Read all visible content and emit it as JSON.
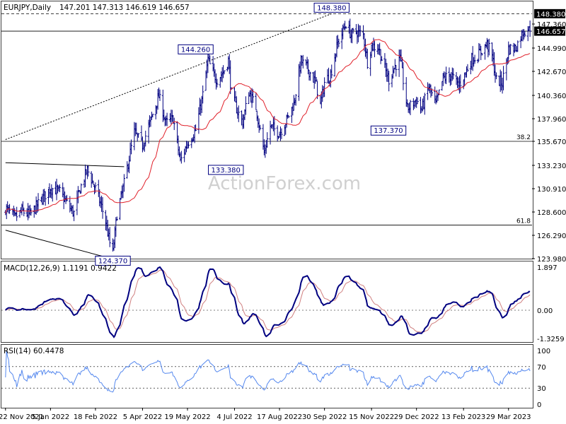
{
  "chart_data": [
    {
      "type": "ohlc",
      "panel": "price",
      "title": "EURJPY,Daily",
      "ohlc_readout": [
        "147.201",
        "147.313",
        "146.619",
        "146.657"
      ],
      "ylim": [
        123.98,
        149.5
      ],
      "y_ticks": [
        123.98,
        126.29,
        128.6,
        130.91,
        133.23,
        135.67,
        137.96,
        140.36,
        142.67,
        144.99,
        147.36
      ],
      "y_tick_labels": [
        "123.980",
        "126.290",
        "128.600",
        "130.910",
        "133.230",
        "135.670",
        "137.960",
        "140.360",
        "142.670",
        "144.990",
        "147.360"
      ],
      "x_tick_labels": [
        "22 Nov 2021",
        "5 Jan 2022",
        "18 Feb 2022",
        "5 Apr 2022",
        "19 May 2022",
        "4 Jul 2022",
        "17 Aug 2022",
        "30 Sep 2022",
        "15 Nov 2022",
        "29 Dec 2022",
        "13 Feb 2023",
        "29 Mar 2023"
      ],
      "close_anchors": [
        [
          "22 Nov 2021",
          129.0
        ],
        [
          "1 Dec 2021",
          128.0
        ],
        [
          "8 Dec 2021",
          128.7
        ],
        [
          "16 Dec 2021",
          128.3
        ],
        [
          "27 Dec 2021",
          129.8
        ],
        [
          "5 Jan 2022",
          131.0
        ],
        [
          "14 Jan 2022",
          130.6
        ],
        [
          "24 Jan 2022",
          129.0
        ],
        [
          "28 Jan 2022",
          128.5
        ],
        [
          "3 Feb 2022",
          130.9
        ],
        [
          "10 Feb 2022",
          132.8
        ],
        [
          "18 Feb 2022",
          130.9
        ],
        [
          "24 Feb 2022",
          129.1
        ],
        [
          "28 Feb 2022",
          127.6
        ],
        [
          "4 Mar 2022",
          125.5
        ],
        [
          "7 Mar 2022",
          124.6
        ],
        [
          "11 Mar 2022",
          128.4
        ],
        [
          "17 Mar 2022",
          130.9
        ],
        [
          "22 Mar 2022",
          133.5
        ],
        [
          "28 Mar 2022",
          136.6
        ],
        [
          "5 Apr 2022",
          135.3
        ],
        [
          "13 Apr 2022",
          137.8
        ],
        [
          "21 Apr 2022",
          140.3
        ],
        [
          "28 Apr 2022",
          137.5
        ],
        [
          "5 May 2022",
          138.0
        ],
        [
          "12 May 2022",
          133.6
        ],
        [
          "19 May 2022",
          135.5
        ],
        [
          "27 May 2022",
          136.8
        ],
        [
          "3 Jun 2022",
          140.4
        ],
        [
          "8 Jun 2022",
          143.8
        ],
        [
          "13 Jun 2022",
          142.5
        ],
        [
          "17 Jun 2022",
          141.9
        ],
        [
          "23 Jun 2022",
          142.6
        ],
        [
          "28 Jun 2022",
          143.8
        ],
        [
          "1 Jul 2022",
          140.5
        ],
        [
          "7 Jul 2022",
          138.7
        ],
        [
          "12 Jul 2022",
          137.6
        ],
        [
          "18 Jul 2022",
          140.7
        ],
        [
          "25 Jul 2022",
          139.1
        ],
        [
          "2 Aug 2022",
          134.5
        ],
        [
          "8 Aug 2022",
          137.2
        ],
        [
          "17 Aug 2022",
          136.5
        ],
        [
          "23 Aug 2022",
          137.6
        ],
        [
          "31 Aug 2022",
          139.5
        ],
        [
          "7 Sep 2022",
          143.7
        ],
        [
          "14 Sep 2022",
          142.9
        ],
        [
          "22 Sep 2022",
          141.4
        ],
        [
          "26 Sep 2022",
          139.3
        ],
        [
          "30 Sep 2022",
          141.6
        ],
        [
          "6 Oct 2022",
          142.4
        ],
        [
          "13 Oct 2022",
          145.5
        ],
        [
          "21 Oct 2022",
          147.4
        ],
        [
          "26 Oct 2022",
          146.3
        ],
        [
          "31 Oct 2022",
          146.6
        ],
        [
          "7 Nov 2022",
          146.3
        ],
        [
          "11 Nov 2022",
          143.6
        ],
        [
          "15 Nov 2022",
          145.2
        ],
        [
          "22 Nov 2022",
          145.0
        ],
        [
          "28 Nov 2022",
          142.9
        ],
        [
          "2 Dec 2022",
          141.9
        ],
        [
          "8 Dec 2022",
          143.2
        ],
        [
          "13 Dec 2022",
          143.9
        ],
        [
          "20 Dec 2022",
          139.0
        ],
        [
          "29 Dec 2022",
          139.9
        ],
        [
          "3 Jan 2023",
          138.9
        ],
        [
          "10 Jan 2023",
          141.2
        ],
        [
          "17 Jan 2023",
          139.4
        ],
        [
          "24 Jan 2023",
          142.0
        ],
        [
          "1 Feb 2023",
          142.3
        ],
        [
          "8 Feb 2023",
          141.3
        ],
        [
          "13 Feb 2023",
          142.1
        ],
        [
          "21 Feb 2023",
          143.9
        ],
        [
          "27 Feb 2023",
          144.2
        ],
        [
          "3 Mar 2023",
          144.8
        ],
        [
          "8 Mar 2023",
          145.4
        ],
        [
          "13 Mar 2023",
          144.2
        ],
        [
          "17 Mar 2023",
          141.8
        ],
        [
          "23 Mar 2023",
          141.6
        ],
        [
          "29 Mar 2023",
          144.9
        ],
        [
          "5 Apr 2023",
          145.0
        ],
        [
          "12 Apr 2023",
          146.6
        ],
        [
          "17 Apr 2023",
          146.9
        ],
        [
          "19 Apr 2023",
          146.657
        ]
      ],
      "overlays": {
        "sma_color": "#e0202a",
        "price_color": "#000080",
        "trendline_dotted": [
          [
            "22 Nov 2021",
            135.85
          ],
          [
            "7 Oct 2022",
            148.38
          ]
        ],
        "channel_upper": [
          [
            "22 Nov 2021",
            133.5
          ],
          [
            "18 Mar 2022",
            133.1
          ]
        ],
        "channel_lower": [
          [
            "22 Nov 2021",
            126.8
          ],
          [
            "23 Mar 2022",
            123.5
          ]
        ],
        "horizontal_levels": [
          {
            "value": 148.38,
            "style": "dashed"
          },
          {
            "value": 146.657,
            "style": "solid"
          },
          {
            "value": 135.67,
            "style": "solid",
            "label": "38.2"
          },
          {
            "value": 127.3,
            "style": "solid",
            "label": "61.8"
          }
        ],
        "callouts": [
          {
            "text": "148.380",
            "date": "7 Oct 2022",
            "value": 148.38
          },
          {
            "text": "144.260",
            "date": "27 May 2022",
            "value": 144.26
          },
          {
            "text": "133.380",
            "date": "14 Jul 2022",
            "value": 133.38
          },
          {
            "text": "137.370",
            "date": "20 Dec 2022",
            "value": 137.37
          },
          {
            "text": "124.370",
            "date": "7 Mar 2022",
            "value": 124.37
          }
        ],
        "value_boxes": [
          "148.380",
          "146.657"
        ]
      }
    },
    {
      "type": "line",
      "panel": "macd",
      "title": "MACD(12,26,9) 1.1191 0.9422",
      "series_colors": [
        "#000080",
        "#d08080"
      ],
      "ylim": [
        -1.6,
        2.2
      ],
      "y_tick_labels": [
        "1.897",
        "0.00",
        "-1.3259"
      ],
      "y_ticks": [
        1.897,
        0.0,
        -1.3259
      ]
    },
    {
      "type": "line",
      "panel": "rsi",
      "title": "RSI(14) 60.4478",
      "series_colors": [
        "#5588ee"
      ],
      "ylim": [
        0,
        100
      ],
      "y_tick_labels": [
        "100",
        "70",
        "30",
        "0"
      ],
      "y_ticks": [
        100,
        70,
        30,
        0
      ]
    }
  ],
  "watermark": "ActionForex.com"
}
